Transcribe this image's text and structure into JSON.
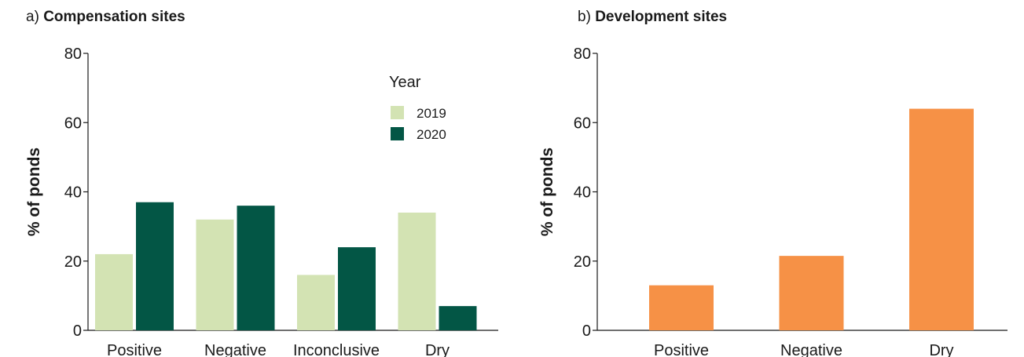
{
  "panels": [
    {
      "label": "a)",
      "title": "Compensation sites"
    },
    {
      "label": "b)",
      "title": "Development sites"
    }
  ],
  "chart_data": [
    {
      "type": "bar",
      "title": "Compensation sites",
      "ylabel": "% of ponds",
      "xlabel": "",
      "ylim": [
        0,
        80
      ],
      "yticks": [
        0,
        20,
        40,
        60,
        80
      ],
      "categories": [
        "Positive",
        "Negative",
        "Inconclusive",
        "Dry"
      ],
      "legend_title": "Year",
      "legend_position": "top-right",
      "grid": false,
      "series": [
        {
          "name": "2019",
          "color": "#d3e3b3",
          "values": [
            22,
            32,
            16,
            34
          ]
        },
        {
          "name": "2020",
          "color": "#035645",
          "values": [
            37,
            36,
            24,
            7
          ]
        }
      ]
    },
    {
      "type": "bar",
      "title": "Development sites",
      "ylabel": "% of ponds",
      "xlabel": "",
      "ylim": [
        0,
        80
      ],
      "yticks": [
        0,
        20,
        40,
        60,
        80
      ],
      "categories": [
        "Positive",
        "Negative",
        "Dry"
      ],
      "grid": false,
      "series": [
        {
          "color": "#f69146",
          "values": [
            13,
            21.5,
            64
          ]
        }
      ]
    }
  ]
}
